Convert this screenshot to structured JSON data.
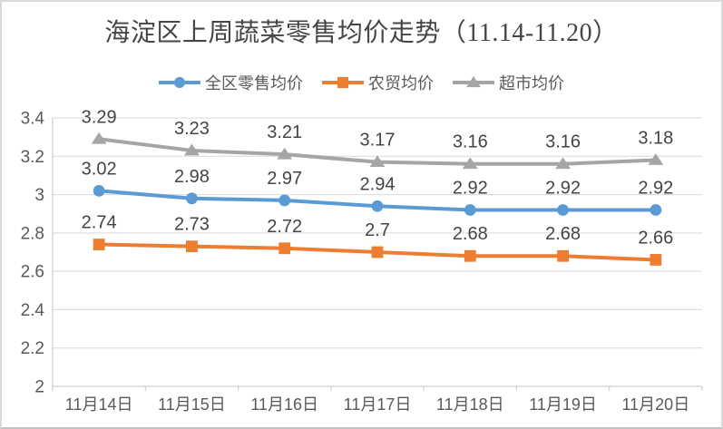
{
  "chart_data": {
    "type": "line",
    "title": "海淀区上周蔬菜零售均价走势（11.14-11.20）",
    "categories": [
      "11月14日",
      "11月15日",
      "11月16日",
      "11月17日",
      "11月18日",
      "11月19日",
      "11月20日"
    ],
    "series": [
      {
        "name": "全区零售均价",
        "color": "#5B9BD5",
        "marker": "circle",
        "values": [
          3.02,
          2.98,
          2.97,
          2.94,
          2.92,
          2.92,
          2.92
        ],
        "labels": [
          "3.02",
          "2.98",
          "2.97",
          "2.94",
          "2.92",
          "2.92",
          "2.92"
        ]
      },
      {
        "name": "农贸均价",
        "color": "#ED7D31",
        "marker": "square",
        "values": [
          2.74,
          2.73,
          2.72,
          2.7,
          2.68,
          2.68,
          2.66
        ],
        "labels": [
          "2.74",
          "2.73",
          "2.72",
          "2.7",
          "2.68",
          "2.68",
          "2.66"
        ]
      },
      {
        "name": "超市均价",
        "color": "#A5A5A5",
        "marker": "triangle",
        "values": [
          3.29,
          3.23,
          3.21,
          3.17,
          3.16,
          3.16,
          3.18
        ],
        "labels": [
          "3.29",
          "3.23",
          "3.21",
          "3.17",
          "3.16",
          "3.16",
          "3.18"
        ]
      }
    ],
    "y_axis": {
      "min": 2,
      "max": 3.4,
      "step": 0.2,
      "tick_labels": [
        "2",
        "2.2",
        "2.4",
        "2.6",
        "2.8",
        "3",
        "3.2",
        "3.4"
      ]
    },
    "grid": true,
    "legend_position": "top",
    "colors": {
      "gridline": "#D9D9D9",
      "axis_line": "#C6C6C6",
      "axis_text": "#595959",
      "data_label_text": "#444444",
      "title_text": "#454545",
      "background": "#FFFFFF",
      "border": "#D9D9D9"
    }
  }
}
